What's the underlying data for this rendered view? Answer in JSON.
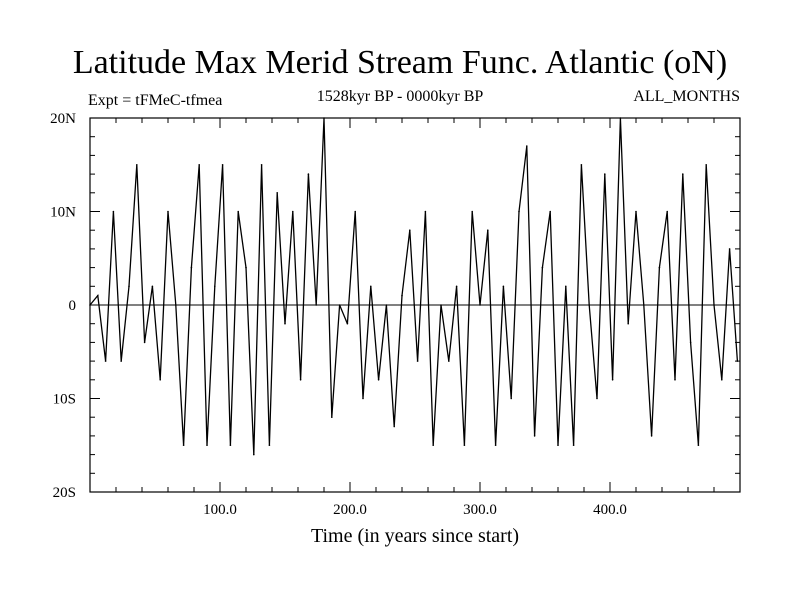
{
  "chart_data": {
    "type": "line",
    "title": "Latitude Max Merid Stream Func. Atlantic (oN)",
    "subtitle_left": "Expt = tFMeC-tfmea",
    "subtitle_center": "1528kyr BP - 0000kyr BP",
    "subtitle_right": "ALL_MONTHS",
    "xlabel": "Time (in years since start)",
    "ylabel": "",
    "xlim": [
      0,
      500
    ],
    "ylim": [
      -20,
      20
    ],
    "xticks": [
      100,
      200,
      300,
      400
    ],
    "xtick_labels": [
      "100.0",
      "200.0",
      "300.0",
      "400.0"
    ],
    "yticks": [
      -20,
      -10,
      0,
      10,
      20
    ],
    "ytick_labels": [
      "20S",
      "10S",
      "0",
      "10N",
      "20N"
    ],
    "grid": false,
    "series": [
      {
        "name": "latitude",
        "x": [
          0,
          6,
          12,
          18,
          24,
          30,
          36,
          42,
          48,
          54,
          60,
          66,
          72,
          78,
          84,
          90,
          96,
          102,
          108,
          114,
          120,
          126,
          132,
          138,
          144,
          150,
          156,
          162,
          168,
          174,
          180,
          186,
          192,
          198,
          204,
          210,
          216,
          222,
          228,
          234,
          240,
          246,
          252,
          258,
          264,
          270,
          276,
          282,
          288,
          294,
          300,
          306,
          312,
          318,
          324,
          330,
          336,
          342,
          348,
          354,
          360,
          366,
          372,
          378,
          384,
          390,
          396,
          402,
          408,
          414,
          420,
          426,
          432,
          438,
          444,
          450,
          456,
          462,
          468,
          474,
          480,
          486,
          492,
          498
        ],
        "values": [
          0,
          1,
          -6,
          10,
          -6,
          2,
          15,
          -4,
          2,
          -8,
          10,
          0,
          -15,
          4,
          15,
          -15,
          2,
          15,
          -15,
          10,
          4,
          -16,
          15,
          -15,
          12,
          -2,
          10,
          -8,
          14,
          0,
          20,
          -12,
          0,
          -2,
          10,
          -10,
          2,
          -8,
          0,
          -13,
          1,
          8,
          -6,
          10,
          -15,
          0,
          -6,
          2,
          -15,
          10,
          0,
          8,
          -15,
          2,
          -10,
          10,
          17,
          -14,
          4,
          10,
          -15,
          2,
          -15,
          15,
          0,
          -10,
          14,
          -8,
          20,
          -2,
          10,
          0,
          -14,
          4,
          10,
          -8,
          14,
          -4,
          -15,
          15,
          0,
          -8,
          6,
          -6
        ]
      }
    ]
  }
}
